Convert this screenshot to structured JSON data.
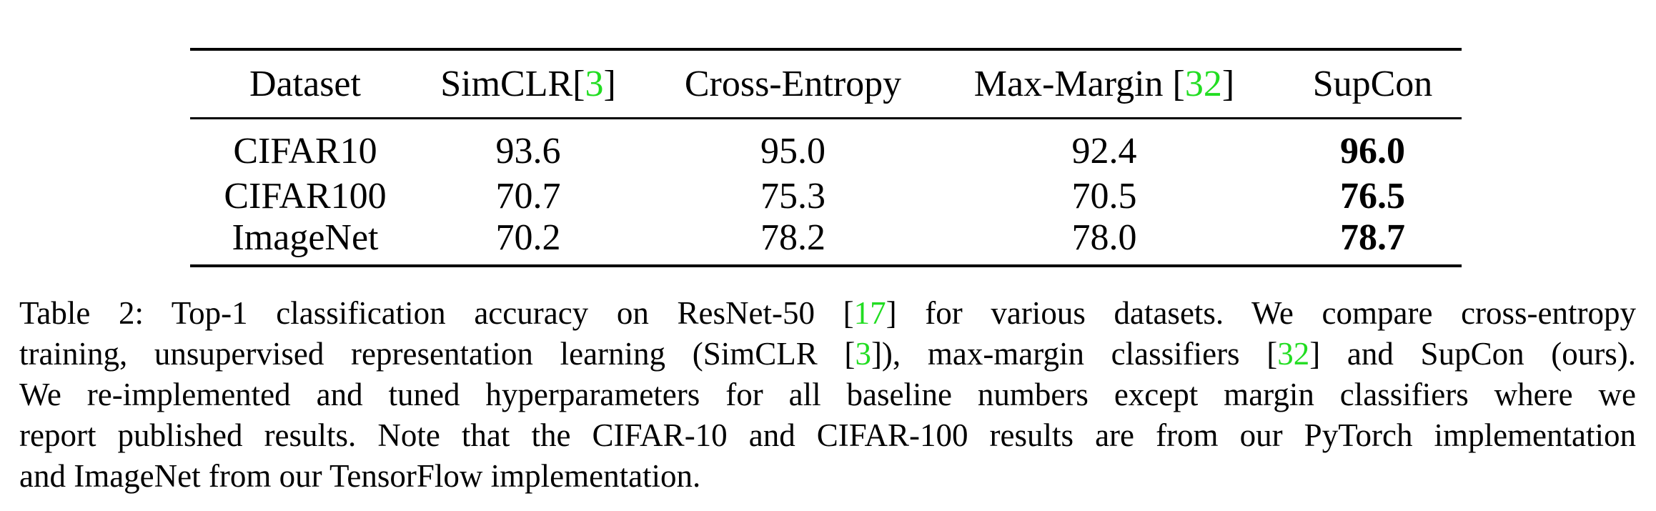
{
  "table": {
    "headers": [
      {
        "text": "Dataset",
        "cite": ""
      },
      {
        "text": "SimCLR[",
        "cite": "3",
        "suffix": "]"
      },
      {
        "text": "Cross-Entropy",
        "cite": ""
      },
      {
        "text": "Max-Margin [",
        "cite": "32",
        "suffix": "]"
      },
      {
        "text": "SupCon",
        "cite": ""
      }
    ],
    "rows": [
      {
        "dataset": "CIFAR10",
        "simclr": "93.6",
        "cross_entropy": "95.0",
        "max_margin": "92.4",
        "supcon": "96.0"
      },
      {
        "dataset": "CIFAR100",
        "simclr": "70.7",
        "cross_entropy": "75.3",
        "max_margin": "70.5",
        "supcon": "76.5"
      },
      {
        "dataset": "ImageNet",
        "simclr": "70.2",
        "cross_entropy": "78.2",
        "max_margin": "78.0",
        "supcon": "78.7"
      }
    ]
  },
  "caption": {
    "line1": {
      "a": "Table 2: Top-1 classification accuracy on ResNet-50 [",
      "cite": "17",
      "b": "] for various datasets. We compare cross-entropy"
    },
    "line2": {
      "a": "training, unsupervised representation learning (SimCLR [",
      "cite1": "3",
      "b": "]), max-margin classifiers [",
      "cite2": "32",
      "c": "] and SupCon (ours)."
    },
    "line3": "We re-implemented and tuned hyperparameters for all baseline numbers except margin classifiers where we",
    "line4": "report published results. Note that the CIFAR-10 and CIFAR-100 results are from our PyTorch implementation",
    "line5": "and ImageNet from our TensorFlow implementation."
  },
  "colors": {
    "citation": "#22dd22",
    "text": "#000000"
  }
}
